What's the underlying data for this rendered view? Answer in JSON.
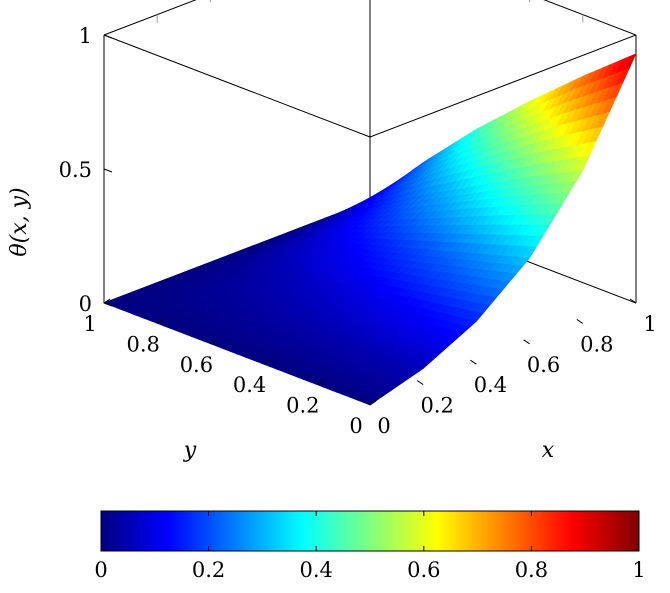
{
  "chart_data": {
    "type": "surface",
    "title": "",
    "xlabel": "x",
    "ylabel": "y",
    "zlabel": "θ(x, y)",
    "xlim": [
      0,
      1
    ],
    "ylim": [
      0,
      1
    ],
    "zlim": [
      0,
      1
    ],
    "x_ticks": [
      "0",
      "0.2",
      "0.4",
      "0.6",
      "0.8",
      "1"
    ],
    "y_ticks": [
      "0",
      "0.2",
      "0.4",
      "0.6",
      "0.8",
      "1"
    ],
    "z_ticks": [
      "0",
      "0.5",
      "1"
    ],
    "grid": false,
    "surface": {
      "description_corners": {
        "x0_y0": 0.0,
        "x0_y1": 0.0,
        "x1_y0": 0.93,
        "x1_y1": 0.0
      },
      "x": [
        0,
        0.2,
        0.4,
        0.6,
        0.8,
        1.0
      ],
      "y": [
        0,
        0.2,
        0.4,
        0.6,
        0.8,
        1.0
      ],
      "z": [
        [
          0.0,
          0.0,
          0.0,
          0.0,
          0.0,
          0.0
        ],
        [
          0.06,
          0.05,
          0.04,
          0.03,
          0.02,
          0.0
        ],
        [
          0.16,
          0.13,
          0.1,
          0.07,
          0.04,
          0.0
        ],
        [
          0.32,
          0.26,
          0.2,
          0.14,
          0.08,
          0.0
        ],
        [
          0.57,
          0.47,
          0.36,
          0.25,
          0.13,
          0.0
        ],
        [
          0.93,
          0.77,
          0.6,
          0.42,
          0.22,
          0.0
        ]
      ]
    },
    "colorbar": {
      "colormap": "jet",
      "range": [
        0,
        1
      ],
      "ticks": [
        "0",
        "0.2",
        "0.4",
        "0.6",
        "0.8",
        "1"
      ],
      "placement": "bottom"
    }
  }
}
